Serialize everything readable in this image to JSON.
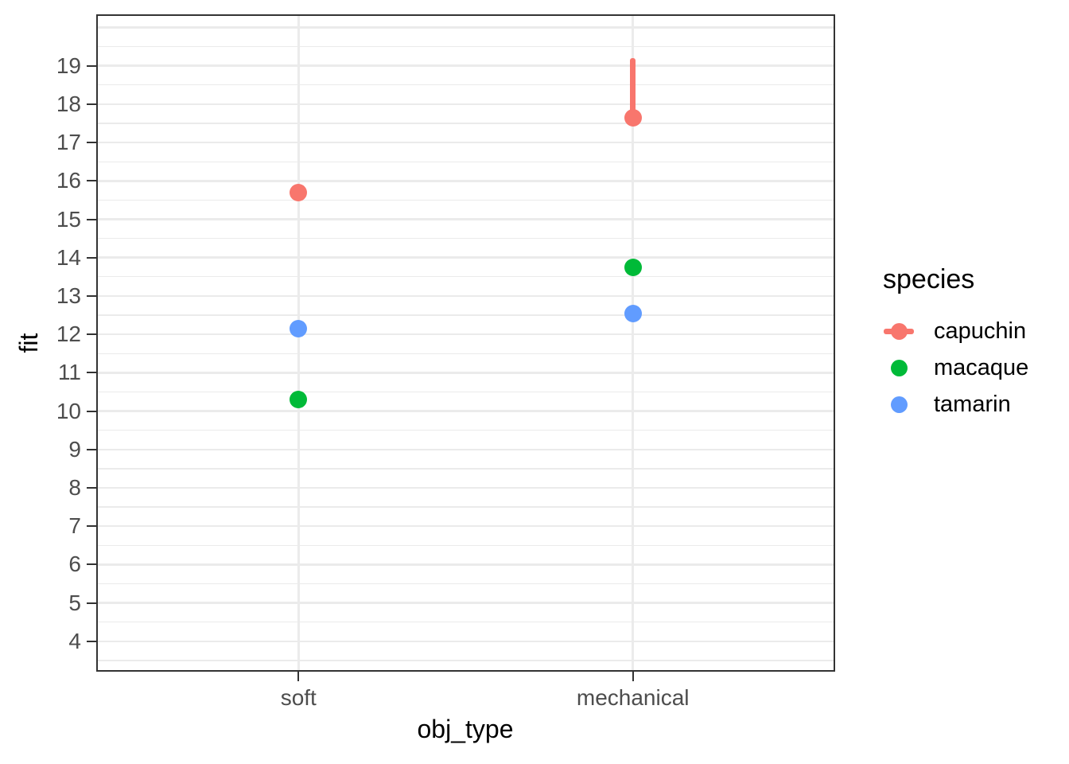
{
  "chart_data": {
    "type": "scatter",
    "subtype": "pointrange",
    "title": "",
    "xlabel": "obj_type",
    "ylabel": "fit",
    "categories": [
      "soft",
      "mechanical"
    ],
    "y_ticks": [
      4,
      5,
      6,
      7,
      8,
      9,
      10,
      11,
      12,
      13,
      14,
      15,
      16,
      17,
      18,
      19
    ],
    "ylim": [
      3.25,
      20.3
    ],
    "grid": {
      "major": true,
      "minor": true,
      "major_values": [
        4,
        5,
        6,
        7,
        8,
        9,
        10,
        11,
        12,
        13,
        14,
        15,
        16,
        17,
        18,
        19,
        20
      ],
      "minor_values": [
        3.5,
        4.5,
        5.5,
        6.5,
        7.5,
        8.5,
        9.5,
        10.5,
        11.5,
        12.5,
        13.5,
        14.5,
        15.5,
        16.5,
        17.5,
        18.5,
        19.5
      ]
    },
    "legend": {
      "title": "species",
      "position": "right",
      "entries": [
        {
          "label": "capuchin",
          "color": "#F8766D",
          "key": "pointrange"
        },
        {
          "label": "macaque",
          "color": "#00BA38",
          "key": "point"
        },
        {
          "label": "tamarin",
          "color": "#619CFF",
          "key": "point"
        }
      ]
    },
    "series": [
      {
        "name": "capuchin",
        "color": "#F8766D",
        "points": [
          {
            "obj_type": "soft",
            "fit": 15.7
          },
          {
            "obj_type": "mechanical",
            "fit": 17.65,
            "upper": 19.2
          }
        ]
      },
      {
        "name": "macaque",
        "color": "#00BA38",
        "points": [
          {
            "obj_type": "soft",
            "fit": 10.3
          },
          {
            "obj_type": "mechanical",
            "fit": 13.75
          }
        ]
      },
      {
        "name": "tamarin",
        "color": "#619CFF",
        "points": [
          {
            "obj_type": "soft",
            "fit": 12.15
          },
          {
            "obj_type": "mechanical",
            "fit": 12.55
          }
        ]
      }
    ],
    "colors": {
      "grid": "#EBEBEB",
      "panel_border": "#333333",
      "tick_mark": "#333333",
      "tick_label": "#4D4D4D",
      "axis_title": "#000000",
      "background": "#FFFFFF"
    }
  }
}
